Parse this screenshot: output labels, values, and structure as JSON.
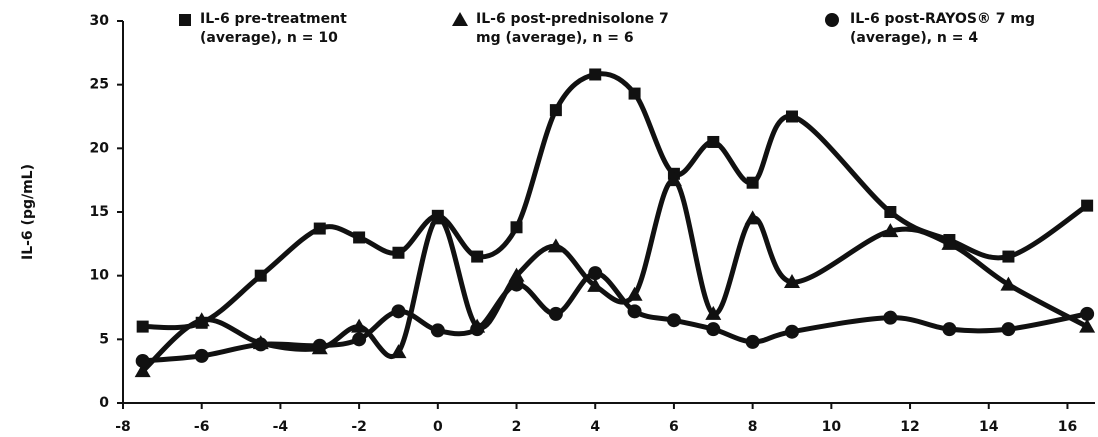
{
  "chart_data": {
    "type": "line",
    "y_label": "IL-6 (pg/mL)",
    "xlim": [
      -8,
      16.7
    ],
    "xticks": [
      -8,
      -6,
      -4,
      -2,
      0,
      2,
      4,
      6,
      8,
      10,
      12,
      14,
      16
    ],
    "ylim": [
      0,
      30
    ],
    "yticks": [
      0,
      5,
      10,
      15,
      20,
      25,
      30
    ],
    "grid": false,
    "series": [
      {
        "name": "IL-6 pre-treatment (average), n = 10",
        "color": "#111111",
        "marker": "square",
        "x": [
          -7.5,
          -6,
          -4.5,
          -3,
          -2,
          -1,
          0,
          1,
          2,
          3,
          4,
          5,
          6,
          7,
          8,
          9,
          11.5,
          13,
          14.5,
          16.5
        ],
        "values": [
          6.0,
          6.3,
          10,
          13.7,
          13,
          11.8,
          14.7,
          11.5,
          13.8,
          23,
          25.8,
          24.3,
          18,
          20.5,
          17.3,
          22.5,
          15,
          12.8,
          11.5,
          15.5
        ]
      },
      {
        "name": "IL-6 post-prednisolone 7 mg (average), n = 6",
        "color": "#111111",
        "marker": "triangle",
        "x": [
          -7.5,
          -6,
          -4.5,
          -3,
          -2,
          -1,
          0,
          1,
          2,
          3,
          4,
          5,
          6,
          7,
          8,
          9,
          11.5,
          13,
          14.5,
          16.5
        ],
        "values": [
          2.5,
          6.5,
          4.7,
          4.3,
          6,
          4.0,
          14.5,
          6,
          10,
          12.3,
          9.2,
          8.5,
          17.5,
          7,
          14.5,
          9.5,
          13.5,
          12.5,
          9.3,
          6.0
        ]
      },
      {
        "name": "IL-6 post-RAYOS® 7 mg (average), n = 4",
        "color": "#111111",
        "marker": "circle",
        "x": [
          -7.5,
          -6,
          -4.5,
          -3,
          -2,
          -1,
          0,
          1,
          2,
          3,
          4,
          5,
          6,
          7,
          8,
          9,
          11.5,
          13,
          14.5,
          16.5
        ],
        "values": [
          3.3,
          3.7,
          4.6,
          4.5,
          5,
          7.2,
          5.7,
          5.8,
          9.3,
          7,
          10.2,
          7.2,
          6.5,
          5.8,
          4.8,
          5.6,
          6.7,
          5.8,
          5.8,
          7
        ]
      }
    ]
  }
}
